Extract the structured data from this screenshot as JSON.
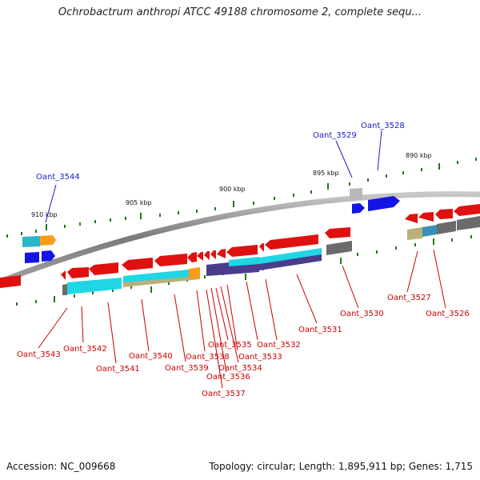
{
  "title": "Ochrobactrum anthropi ATCC 49188 chromosome 2, complete sequ...",
  "footer": {
    "accession": "Accession: NC_009668",
    "summary": "Topology: circular; Length: 1,895,911 bp; Genes: 1,715"
  },
  "scale_labels": [
    "910 kbp",
    "905 kbp",
    "900 kbp",
    "895 kbp",
    "890 kbp"
  ],
  "colors": {
    "backbone": "#8a8a8a",
    "tick": "#1e7a1e",
    "label_link": "#1a1acc",
    "label_plain": "#cc0000",
    "forward_gene": "#e01010",
    "reverse_gene": "#1414e6",
    "cyan": "#1fd6e6",
    "khaki": "#b8b07a",
    "purple": "#4a3d8c",
    "gray": "#6b6b6b",
    "orange": "#ff9a1a",
    "teal": "#3a8fb5"
  },
  "gene_labels_linked": [
    "Oant_3544",
    "Oant_3529",
    "Oant_3528"
  ],
  "gene_labels": [
    "Oant_3543",
    "Oant_3542",
    "Oant_3541",
    "Oant_3540",
    "Oant_3539",
    "Oant_3538",
    "Oant_3537",
    "Oant_3536",
    "Oant_3535",
    "Oant_3534",
    "Oant_3533",
    "Oant_3532",
    "Oant_3531",
    "Oant_3530",
    "Oant_3527",
    "Oant_3526"
  ]
}
